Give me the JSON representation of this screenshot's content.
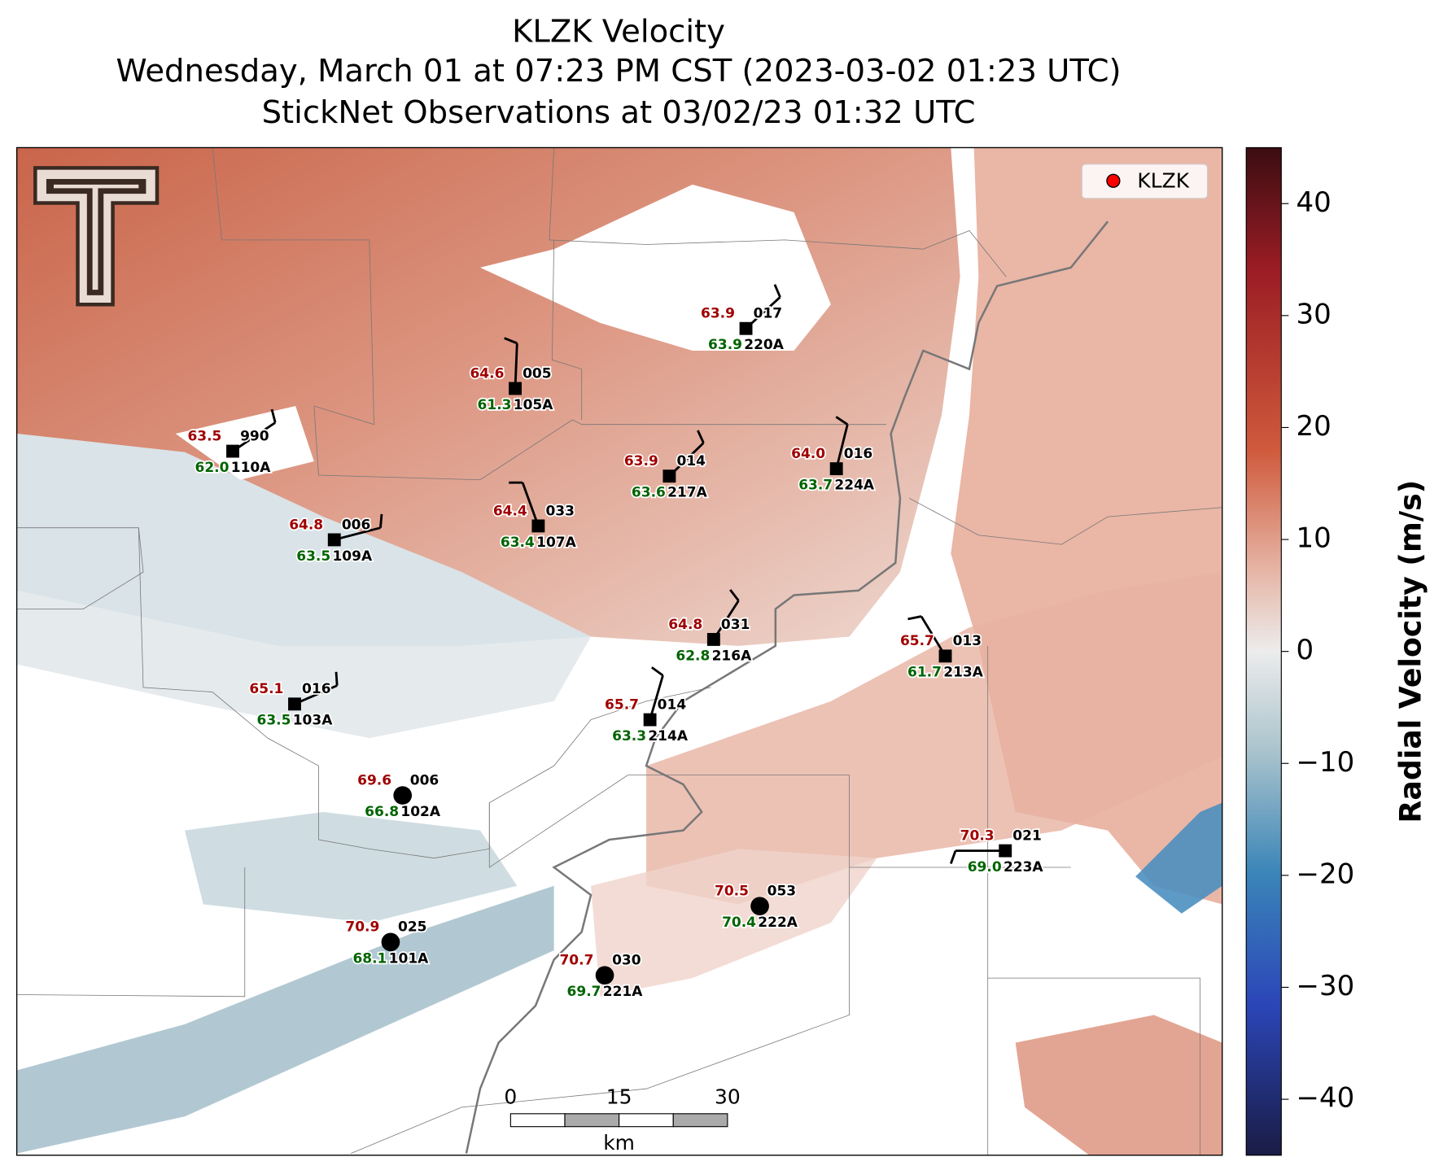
{
  "title": [
    "KLZK Velocity",
    "Wednesday, March 01 at 07:23 PM CST (2023-03-02 01:23 UTC)",
    "StickNet Observations at 03/02/23 01:32 UTC"
  ],
  "legend": {
    "label": "KLZK",
    "color": "#ff0000"
  },
  "stations": [
    {
      "id": "220A",
      "temperature": "63.9",
      "dewpoint": "63.9",
      "pressure": "017"
    },
    {
      "id": "105A",
      "temperature": "64.6",
      "dewpoint": "61.3",
      "pressure": "005"
    },
    {
      "id": "110A",
      "temperature": "63.5",
      "dewpoint": "62.0",
      "pressure": "990"
    },
    {
      "id": "217A",
      "temperature": "63.9",
      "dewpoint": "63.6",
      "pressure": "014"
    },
    {
      "id": "224A",
      "temperature": "64.0",
      "dewpoint": "63.7",
      "pressure": "016"
    },
    {
      "id": "107A",
      "temperature": "64.4",
      "dewpoint": "63.4",
      "pressure": "033"
    },
    {
      "id": "109A",
      "temperature": "64.8",
      "dewpoint": "63.5",
      "pressure": "006"
    },
    {
      "id": "216A",
      "temperature": "64.8",
      "dewpoint": "62.8",
      "pressure": "031"
    },
    {
      "id": "213A",
      "temperature": "65.7",
      "dewpoint": "61.7",
      "pressure": "013"
    },
    {
      "id": "103A",
      "temperature": "65.1",
      "dewpoint": "63.5",
      "pressure": "016"
    },
    {
      "id": "214A",
      "temperature": "65.7",
      "dewpoint": "63.3",
      "pressure": "014"
    },
    {
      "id": "102A",
      "temperature": "69.6",
      "dewpoint": "66.8",
      "pressure": "006"
    },
    {
      "id": "223A",
      "temperature": "70.3",
      "dewpoint": "69.0",
      "pressure": "021"
    },
    {
      "id": "222A",
      "temperature": "70.5",
      "dewpoint": "70.4",
      "pressure": "053"
    },
    {
      "id": "101A",
      "temperature": "70.9",
      "dewpoint": "68.1",
      "pressure": "025"
    },
    {
      "id": "221A",
      "temperature": "70.7",
      "dewpoint": "69.7",
      "pressure": "030"
    }
  ],
  "colorbar": {
    "label": "Radial Velocity (m/s)",
    "lim": [
      -45,
      45
    ],
    "ticks": [
      40,
      30,
      20,
      10,
      0,
      {
        "value": -10,
        "label": "−10"
      },
      {
        "value": -20,
        "label": "−20"
      },
      {
        "value": -30,
        "label": "−30"
      },
      {
        "value": -40,
        "label": "−40"
      }
    ]
  },
  "scale_bar": {
    "ticks": [
      0,
      15,
      30
    ],
    "unit": "km"
  }
}
